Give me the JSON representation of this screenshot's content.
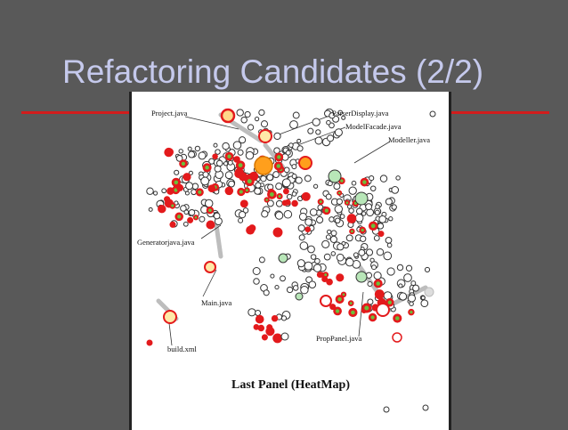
{
  "slide": {
    "title": "Refactoring Candidates (2/2)"
  },
  "diagram": {
    "caption": "Last Panel (HeatMap)",
    "labels": [
      "Project.java",
      "ParserDisplay.java",
      "ModelFacade.java",
      "Modeller.java",
      "Generatorjava.java",
      "Main.java",
      "PropPanel.java",
      "build.xml"
    ]
  },
  "colors": {
    "background": "#595959",
    "title": "#c5c9ec",
    "rule": "#d21c1c",
    "node_outline": "#333333",
    "hot": "#e31a1c",
    "warm": "#ff9f1c",
    "cool": "#b8e6b8",
    "connector": "#bdbdbd"
  }
}
